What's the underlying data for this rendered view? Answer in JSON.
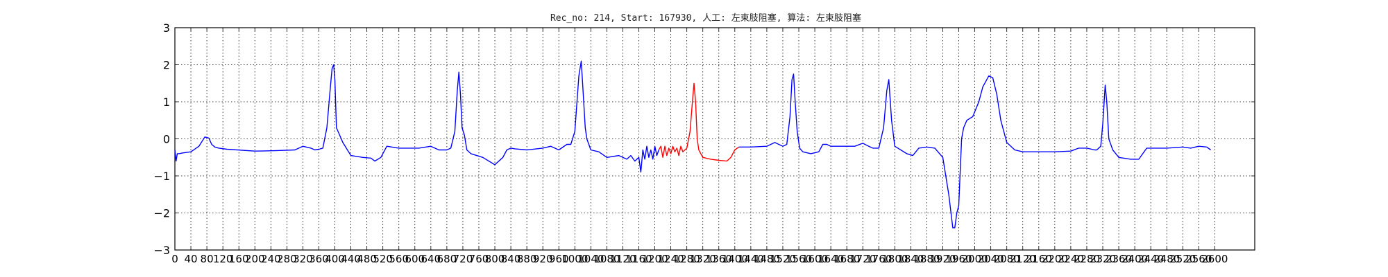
{
  "chart_data": {
    "type": "line",
    "title": "Rec_no: 214, Start: 167930, 人工: 左束肢阻塞, 算法: 左束肢阻塞",
    "xlabel": "",
    "ylabel": "",
    "xlim": [
      0,
      2700
    ],
    "ylim": [
      -3,
      3
    ],
    "grid": true,
    "yticks": [
      3,
      2,
      1,
      0,
      -1,
      -2,
      -3
    ],
    "ytick_labels": [
      "3",
      "2",
      "1",
      "0",
      "−1",
      "−2",
      "−3"
    ],
    "xticks": [
      0,
      40,
      80,
      120,
      160,
      200,
      240,
      280,
      320,
      360,
      400,
      440,
      480,
      520,
      560,
      600,
      640,
      680,
      720,
      760,
      800,
      840,
      880,
      920,
      960,
      1000,
      1040,
      1080,
      1120,
      1160,
      1200,
      1240,
      1280,
      1320,
      1360,
      1400,
      1440,
      1480,
      1520,
      1560,
      1600,
      1640,
      1680,
      1720,
      1760,
      1800,
      1840,
      1880,
      1920,
      1960,
      2000,
      2040,
      2080,
      2120,
      2160,
      2200,
      2240,
      2280,
      2320,
      2360,
      2400,
      2440,
      2480,
      2520,
      2560,
      2600
    ],
    "series": [
      {
        "color": "#0000ff",
        "x": [
          0,
          3,
          6,
          10,
          20,
          40,
          60,
          75,
          85,
          92,
          100,
          110,
          130,
          200,
          250,
          300,
          320,
          340,
          350,
          360,
          370,
          380,
          388,
          393,
          397,
          400,
          404,
          410,
          420,
          440,
          470,
          490,
          500,
          515,
          530,
          560,
          610,
          640,
          660,
          680,
          690,
          700,
          706,
          710,
          714,
          718,
          724,
          730,
          740,
          770,
          800,
          820,
          830,
          840,
          850,
          880,
          920,
          940,
          960,
          980,
          990,
          1000,
          1010,
          1016,
          1020,
          1026,
          1030,
          1040,
          1060,
          1080,
          1110,
          1130,
          1140,
          1150,
          1160,
          1165,
          1170,
          1175,
          1180,
          1185,
          1190,
          1195,
          1200,
          1205,
          1210
        ],
        "y": [
          -0.3,
          -0.6,
          -0.4,
          -0.4,
          -0.38,
          -0.35,
          -0.2,
          0.05,
          0.02,
          -0.15,
          -0.22,
          -0.25,
          -0.28,
          -0.33,
          -0.32,
          -0.3,
          -0.2,
          -0.25,
          -0.3,
          -0.28,
          -0.25,
          0.3,
          1.3,
          1.9,
          2.0,
          1.6,
          0.3,
          0.15,
          -0.1,
          -0.45,
          -0.5,
          -0.52,
          -0.6,
          -0.5,
          -0.2,
          -0.25,
          -0.25,
          -0.2,
          -0.3,
          -0.3,
          -0.25,
          0.2,
          1.3,
          1.8,
          1.2,
          0.3,
          0.1,
          -0.3,
          -0.4,
          -0.5,
          -0.7,
          -0.5,
          -0.3,
          -0.25,
          -0.27,
          -0.3,
          -0.25,
          -0.2,
          -0.3,
          -0.15,
          -0.15,
          0.2,
          1.7,
          2.1,
          1.4,
          0.3,
          0.0,
          -0.3,
          -0.35,
          -0.5,
          -0.45,
          -0.55,
          -0.45,
          -0.6,
          -0.5,
          -0.9,
          -0.3,
          -0.55,
          -0.2,
          -0.5,
          -0.3,
          -0.55,
          -0.2,
          -0.45,
          -0.3
        ]
      },
      {
        "color": "#ff0000",
        "x": [
          1210,
          1215,
          1220,
          1225,
          1230,
          1235,
          1240,
          1245,
          1250,
          1255,
          1260,
          1265,
          1270,
          1275,
          1280,
          1288,
          1294,
          1298,
          1302,
          1306,
          1310,
          1320,
          1340,
          1360,
          1380,
          1390,
          1400,
          1410
        ],
        "y": [
          -0.3,
          -0.2,
          -0.5,
          -0.2,
          -0.45,
          -0.25,
          -0.4,
          -0.2,
          -0.35,
          -0.25,
          -0.45,
          -0.2,
          -0.35,
          -0.3,
          -0.25,
          0.2,
          1.0,
          1.5,
          1.0,
          0.0,
          -0.3,
          -0.5,
          -0.55,
          -0.58,
          -0.6,
          -0.5,
          -0.3,
          -0.22
        ]
      },
      {
        "color": "#0000ff",
        "x": [
          1410,
          1440,
          1480,
          1500,
          1510,
          1520,
          1530,
          1538,
          1543,
          1547,
          1551,
          1556,
          1562,
          1570,
          1590,
          1610,
          1620,
          1630,
          1640,
          1660,
          1700,
          1720,
          1735,
          1745,
          1760,
          1772,
          1780,
          1785,
          1792,
          1800,
          1830,
          1845,
          1860,
          1880,
          1900,
          1920,
          1935,
          1945,
          1950,
          1955,
          1960,
          1963,
          1967,
          1972,
          1980,
          1995,
          2010,
          2020,
          2035,
          2045,
          2055,
          2065,
          2080,
          2100,
          2120,
          2160,
          2200,
          2240,
          2260,
          2280,
          2300,
          2305,
          2315,
          2320,
          2326,
          2330,
          2335,
          2345,
          2360,
          2390,
          2410,
          2430,
          2480,
          2520,
          2540,
          2560,
          2580,
          2590
        ],
        "y": [
          -0.22,
          -0.22,
          -0.2,
          -0.1,
          -0.15,
          -0.2,
          -0.15,
          0.6,
          1.6,
          1.75,
          1.0,
          0.2,
          -0.25,
          -0.35,
          -0.4,
          -0.35,
          -0.15,
          -0.15,
          -0.2,
          -0.2,
          -0.2,
          -0.12,
          -0.2,
          -0.25,
          -0.25,
          0.3,
          1.3,
          1.6,
          0.5,
          -0.2,
          -0.4,
          -0.45,
          -0.25,
          -0.22,
          -0.25,
          -0.5,
          -1.5,
          -2.4,
          -2.4,
          -2.0,
          -1.8,
          -1.0,
          0.0,
          0.3,
          0.5,
          0.6,
          1.0,
          1.4,
          1.7,
          1.65,
          1.2,
          0.5,
          -0.1,
          -0.3,
          -0.35,
          -0.35,
          -0.35,
          -0.33,
          -0.25,
          -0.25,
          -0.3,
          -0.3,
          -0.2,
          0.4,
          1.45,
          1.0,
          0.0,
          -0.3,
          -0.5,
          -0.55,
          -0.55,
          -0.25,
          -0.25,
          -0.22,
          -0.25,
          -0.2,
          -0.22,
          -0.3
        ]
      }
    ]
  }
}
